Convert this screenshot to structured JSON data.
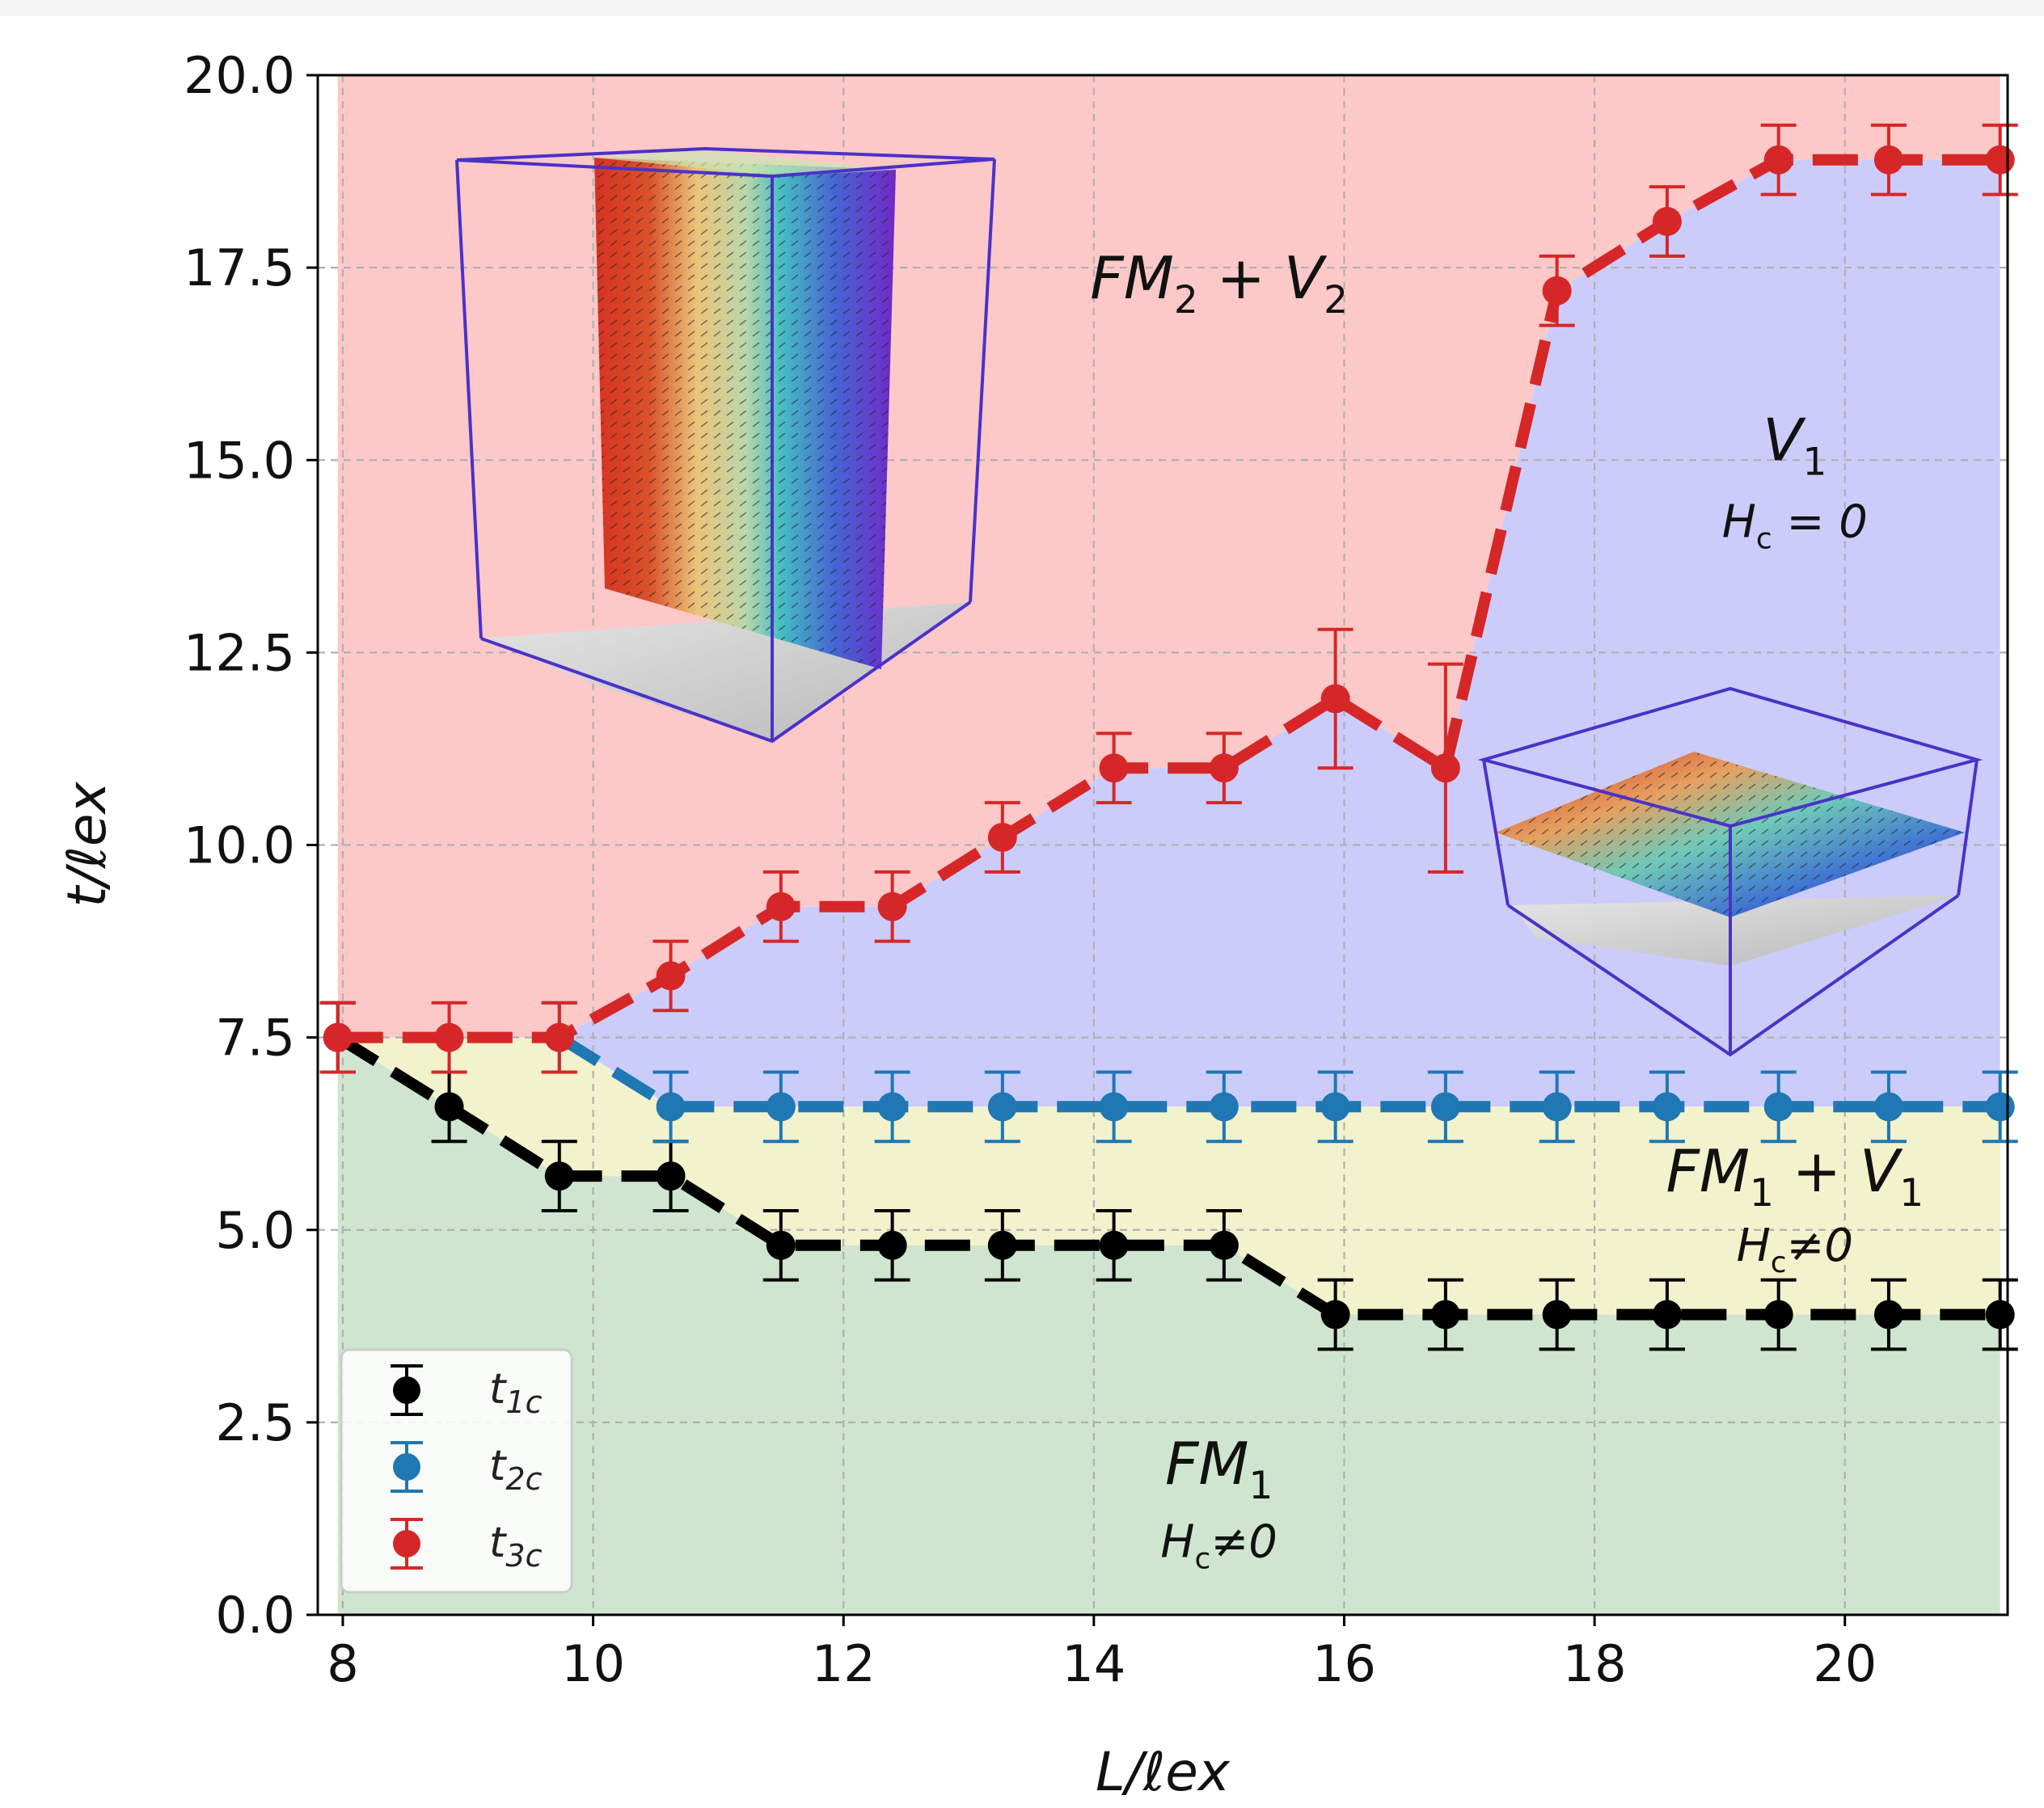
{
  "chart_data": {
    "type": "line",
    "title": "",
    "xlabel": "L/ℓex",
    "ylabel": "t/ℓex",
    "xlim": [
      7.8,
      21.3
    ],
    "ylim": [
      0,
      20
    ],
    "x_ticks": [
      "8",
      "10",
      "12",
      "14",
      "16",
      "18",
      "20"
    ],
    "y_ticks": [
      "0.0",
      "2.5",
      "5.0",
      "7.5",
      "10.0",
      "12.5",
      "15.0",
      "17.5",
      "20.0"
    ],
    "grid": true,
    "x": [
      7.96,
      8.85,
      9.73,
      10.62,
      11.5,
      12.39,
      13.27,
      14.16,
      15.04,
      15.93,
      16.81,
      17.7,
      18.58,
      19.47,
      20.35,
      21.24
    ],
    "series": [
      {
        "name": "t1c",
        "color": "#000000",
        "values": [
          7.5,
          6.6,
          5.7,
          5.7,
          4.8,
          4.8,
          4.8,
          4.8,
          4.8,
          3.9,
          3.9,
          3.9,
          3.9,
          3.9,
          3.9,
          3.9
        ],
        "errors": [
          0.45,
          0.45,
          0.45,
          0.45,
          0.45,
          0.45,
          0.45,
          0.45,
          0.45,
          0.45,
          0.45,
          0.45,
          0.45,
          0.45,
          0.45,
          0.45
        ]
      },
      {
        "name": "t2c",
        "color": "#1f77b4",
        "values": [
          null,
          null,
          7.5,
          6.6,
          6.6,
          6.6,
          6.6,
          6.6,
          6.6,
          6.6,
          6.6,
          6.6,
          6.6,
          6.6,
          6.6,
          6.6
        ],
        "errors": [
          0.45,
          0.45,
          0.45,
          0.45,
          0.45,
          0.45,
          0.45,
          0.45,
          0.45,
          0.45,
          0.45,
          0.45,
          0.45,
          0.45,
          0.45,
          0.45
        ]
      },
      {
        "name": "t3c",
        "color": "#d62728",
        "values": [
          7.5,
          7.5,
          7.5,
          8.3,
          9.2,
          9.2,
          10.1,
          11.0,
          11.0,
          11.9,
          11.0,
          17.2,
          18.1,
          18.9,
          18.9,
          18.9
        ],
        "errors": [
          0.45,
          0.45,
          0.45,
          0.45,
          0.45,
          0.45,
          0.45,
          0.45,
          0.45,
          0.9,
          1.35,
          0.45,
          0.45,
          0.45,
          0.45,
          0.45
        ]
      }
    ],
    "regions": [
      {
        "name": "FM1",
        "color": "#cfe5cf"
      },
      {
        "name": "FM1+V1",
        "color": "#f2f2cc"
      },
      {
        "name": "V1",
        "color": "#ccccfb"
      },
      {
        "name": "FM2+V2",
        "color": "#fdc8c8"
      }
    ],
    "annotations": [
      {
        "main": "FM",
        "sub": "2",
        "main2": " + V",
        "sub2": "2",
        "x": 15.0,
        "y": 17.1,
        "size": "large"
      },
      {
        "main": "V",
        "sub": "1",
        "main2": "",
        "sub2": "",
        "x": 19.6,
        "y": 15.0,
        "size": "large"
      },
      {
        "main": "H",
        "sub": "c",
        "main2": " = 0",
        "sub2": "",
        "x": 19.6,
        "y": 14.0,
        "size": "small"
      },
      {
        "main": "FM",
        "sub": "1",
        "main2": " + V",
        "sub2": "1",
        "x": 19.6,
        "y": 5.5,
        "size": "large"
      },
      {
        "main": "H",
        "sub": "c",
        "main2": "≠0",
        "sub2": "",
        "x": 19.6,
        "y": 4.6,
        "size": "small"
      },
      {
        "main": "FM",
        "sub": "1",
        "main2": "",
        "sub2": "",
        "x": 15.0,
        "y": 1.7,
        "size": "large"
      },
      {
        "main": "H",
        "sub": "c",
        "main2": "≠0",
        "sub2": "",
        "x": 15.0,
        "y": 0.75,
        "size": "small"
      }
    ],
    "legend": {
      "position": "lower-left",
      "entries": [
        {
          "base": "t",
          "sub": "1c",
          "color": "#000000"
        },
        {
          "base": "t",
          "sub": "2c",
          "color": "#1f77b4"
        },
        {
          "base": "t",
          "sub": "3c",
          "color": "#d62728"
        }
      ]
    }
  }
}
